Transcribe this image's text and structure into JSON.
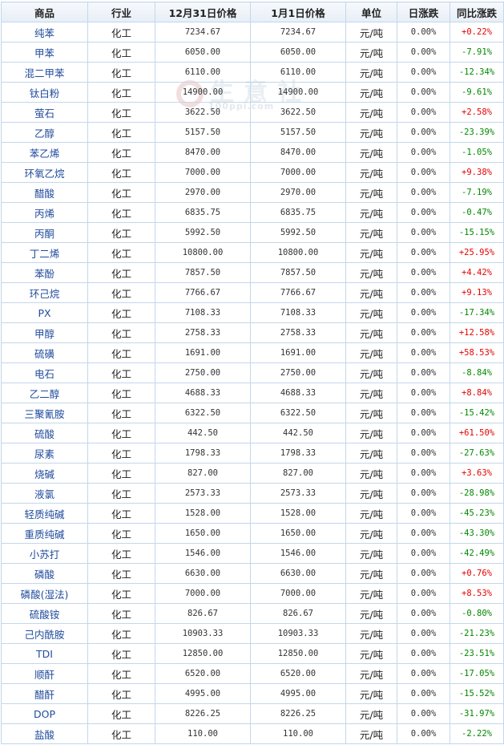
{
  "headers": [
    "商品",
    "行业",
    "12月31日价格",
    "1月1日价格",
    "单位",
    "日涨跌",
    "同比涨跌"
  ],
  "watermark": {
    "text": "生意社",
    "url": "100ppi.com"
  },
  "rows": [
    {
      "name": "纯苯",
      "industry": "化工",
      "p1": "7234.67",
      "p2": "7234.67",
      "unit": "元/吨",
      "daily": "0.00%",
      "yoy": "+0.22%",
      "dir": "up"
    },
    {
      "name": "甲苯",
      "industry": "化工",
      "p1": "6050.00",
      "p2": "6050.00",
      "unit": "元/吨",
      "daily": "0.00%",
      "yoy": "-7.91%",
      "dir": "down"
    },
    {
      "name": "混二甲苯",
      "industry": "化工",
      "p1": "6110.00",
      "p2": "6110.00",
      "unit": "元/吨",
      "daily": "0.00%",
      "yoy": "-12.34%",
      "dir": "down"
    },
    {
      "name": "钛白粉",
      "industry": "化工",
      "p1": "14900.00",
      "p2": "14900.00",
      "unit": "元/吨",
      "daily": "0.00%",
      "yoy": "-9.61%",
      "dir": "down"
    },
    {
      "name": "萤石",
      "industry": "化工",
      "p1": "3622.50",
      "p2": "3622.50",
      "unit": "元/吨",
      "daily": "0.00%",
      "yoy": "+2.58%",
      "dir": "up"
    },
    {
      "name": "乙醇",
      "industry": "化工",
      "p1": "5157.50",
      "p2": "5157.50",
      "unit": "元/吨",
      "daily": "0.00%",
      "yoy": "-23.39%",
      "dir": "down"
    },
    {
      "name": "苯乙烯",
      "industry": "化工",
      "p1": "8470.00",
      "p2": "8470.00",
      "unit": "元/吨",
      "daily": "0.00%",
      "yoy": "-1.05%",
      "dir": "down"
    },
    {
      "name": "环氧乙烷",
      "industry": "化工",
      "p1": "7000.00",
      "p2": "7000.00",
      "unit": "元/吨",
      "daily": "0.00%",
      "yoy": "+9.38%",
      "dir": "up"
    },
    {
      "name": "醋酸",
      "industry": "化工",
      "p1": "2970.00",
      "p2": "2970.00",
      "unit": "元/吨",
      "daily": "0.00%",
      "yoy": "-7.19%",
      "dir": "down"
    },
    {
      "name": "丙烯",
      "industry": "化工",
      "p1": "6835.75",
      "p2": "6835.75",
      "unit": "元/吨",
      "daily": "0.00%",
      "yoy": "-0.47%",
      "dir": "down"
    },
    {
      "name": "丙酮",
      "industry": "化工",
      "p1": "5992.50",
      "p2": "5992.50",
      "unit": "元/吨",
      "daily": "0.00%",
      "yoy": "-15.15%",
      "dir": "down"
    },
    {
      "name": "丁二烯",
      "industry": "化工",
      "p1": "10800.00",
      "p2": "10800.00",
      "unit": "元/吨",
      "daily": "0.00%",
      "yoy": "+25.95%",
      "dir": "up"
    },
    {
      "name": "苯酚",
      "industry": "化工",
      "p1": "7857.50",
      "p2": "7857.50",
      "unit": "元/吨",
      "daily": "0.00%",
      "yoy": "+4.42%",
      "dir": "up"
    },
    {
      "name": "环己烷",
      "industry": "化工",
      "p1": "7766.67",
      "p2": "7766.67",
      "unit": "元/吨",
      "daily": "0.00%",
      "yoy": "+9.13%",
      "dir": "up"
    },
    {
      "name": "PX",
      "industry": "化工",
      "p1": "7108.33",
      "p2": "7108.33",
      "unit": "元/吨",
      "daily": "0.00%",
      "yoy": "-17.34%",
      "dir": "down"
    },
    {
      "name": "甲醇",
      "industry": "化工",
      "p1": "2758.33",
      "p2": "2758.33",
      "unit": "元/吨",
      "daily": "0.00%",
      "yoy": "+12.58%",
      "dir": "up"
    },
    {
      "name": "硫磺",
      "industry": "化工",
      "p1": "1691.00",
      "p2": "1691.00",
      "unit": "元/吨",
      "daily": "0.00%",
      "yoy": "+58.53%",
      "dir": "up"
    },
    {
      "name": "电石",
      "industry": "化工",
      "p1": "2750.00",
      "p2": "2750.00",
      "unit": "元/吨",
      "daily": "0.00%",
      "yoy": "-8.84%",
      "dir": "down"
    },
    {
      "name": "乙二醇",
      "industry": "化工",
      "p1": "4688.33",
      "p2": "4688.33",
      "unit": "元/吨",
      "daily": "0.00%",
      "yoy": "+8.84%",
      "dir": "up"
    },
    {
      "name": "三聚氰胺",
      "industry": "化工",
      "p1": "6322.50",
      "p2": "6322.50",
      "unit": "元/吨",
      "daily": "0.00%",
      "yoy": "-15.42%",
      "dir": "down"
    },
    {
      "name": "硫酸",
      "industry": "化工",
      "p1": "442.50",
      "p2": "442.50",
      "unit": "元/吨",
      "daily": "0.00%",
      "yoy": "+61.50%",
      "dir": "up"
    },
    {
      "name": "尿素",
      "industry": "化工",
      "p1": "1798.33",
      "p2": "1798.33",
      "unit": "元/吨",
      "daily": "0.00%",
      "yoy": "-27.63%",
      "dir": "down"
    },
    {
      "name": "烧碱",
      "industry": "化工",
      "p1": "827.00",
      "p2": "827.00",
      "unit": "元/吨",
      "daily": "0.00%",
      "yoy": "+3.63%",
      "dir": "up"
    },
    {
      "name": "液氯",
      "industry": "化工",
      "p1": "2573.33",
      "p2": "2573.33",
      "unit": "元/吨",
      "daily": "0.00%",
      "yoy": "-28.98%",
      "dir": "down"
    },
    {
      "name": "轻质纯碱",
      "industry": "化工",
      "p1": "1528.00",
      "p2": "1528.00",
      "unit": "元/吨",
      "daily": "0.00%",
      "yoy": "-45.23%",
      "dir": "down"
    },
    {
      "name": "重质纯碱",
      "industry": "化工",
      "p1": "1650.00",
      "p2": "1650.00",
      "unit": "元/吨",
      "daily": "0.00%",
      "yoy": "-43.30%",
      "dir": "down"
    },
    {
      "name": "小苏打",
      "industry": "化工",
      "p1": "1546.00",
      "p2": "1546.00",
      "unit": "元/吨",
      "daily": "0.00%",
      "yoy": "-42.49%",
      "dir": "down"
    },
    {
      "name": "磷酸",
      "industry": "化工",
      "p1": "6630.00",
      "p2": "6630.00",
      "unit": "元/吨",
      "daily": "0.00%",
      "yoy": "+0.76%",
      "dir": "up"
    },
    {
      "name": "磷酸(湿法)",
      "industry": "化工",
      "p1": "7000.00",
      "p2": "7000.00",
      "unit": "元/吨",
      "daily": "0.00%",
      "yoy": "+8.53%",
      "dir": "up"
    },
    {
      "name": "硫酸铵",
      "industry": "化工",
      "p1": "826.67",
      "p2": "826.67",
      "unit": "元/吨",
      "daily": "0.00%",
      "yoy": "-0.80%",
      "dir": "down"
    },
    {
      "name": "己内酰胺",
      "industry": "化工",
      "p1": "10903.33",
      "p2": "10903.33",
      "unit": "元/吨",
      "daily": "0.00%",
      "yoy": "-21.23%",
      "dir": "down"
    },
    {
      "name": "TDI",
      "industry": "化工",
      "p1": "12850.00",
      "p2": "12850.00",
      "unit": "元/吨",
      "daily": "0.00%",
      "yoy": "-23.51%",
      "dir": "down"
    },
    {
      "name": "顺酐",
      "industry": "化工",
      "p1": "6520.00",
      "p2": "6520.00",
      "unit": "元/吨",
      "daily": "0.00%",
      "yoy": "-17.05%",
      "dir": "down"
    },
    {
      "name": "醋酐",
      "industry": "化工",
      "p1": "4995.00",
      "p2": "4995.00",
      "unit": "元/吨",
      "daily": "0.00%",
      "yoy": "-15.52%",
      "dir": "down"
    },
    {
      "name": "DOP",
      "industry": "化工",
      "p1": "8226.25",
      "p2": "8226.25",
      "unit": "元/吨",
      "daily": "0.00%",
      "yoy": "-31.97%",
      "dir": "down"
    },
    {
      "name": "盐酸",
      "industry": "化工",
      "p1": "110.00",
      "p2": "110.00",
      "unit": "元/吨",
      "daily": "0.00%",
      "yoy": "-2.22%",
      "dir": "down"
    }
  ]
}
